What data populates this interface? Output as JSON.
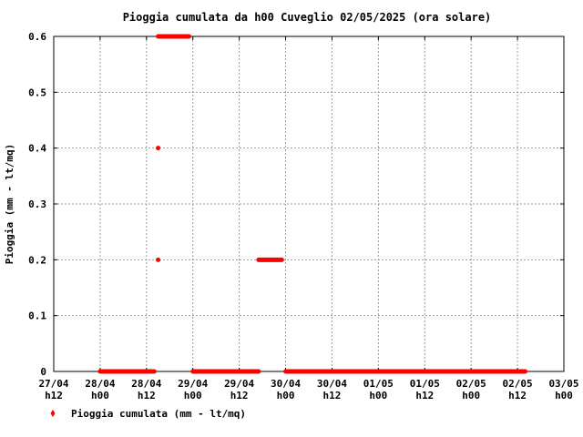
{
  "chart_data": {
    "type": "scatter",
    "title": "Pioggia cumulata da h00 Cuveglio 02/05/2025 (ora solare)",
    "ylabel": "Pioggia (mm - lt/mq)",
    "xlabel": "",
    "ylim": [
      0,
      0.6
    ],
    "y_ticks": [
      "0",
      "0.1",
      "0.2",
      "0.3",
      "0.4",
      "0.5",
      "0.6"
    ],
    "x_ticks": [
      {
        "date": "27/04",
        "hour": "h12"
      },
      {
        "date": "28/04",
        "hour": "h00"
      },
      {
        "date": "28/04",
        "hour": "h12"
      },
      {
        "date": "29/04",
        "hour": "h00"
      },
      {
        "date": "29/04",
        "hour": "h12"
      },
      {
        "date": "30/04",
        "hour": "h00"
      },
      {
        "date": "30/04",
        "hour": "h12"
      },
      {
        "date": "01/05",
        "hour": "h00"
      },
      {
        "date": "01/05",
        "hour": "h12"
      },
      {
        "date": "02/05",
        "hour": "h00"
      },
      {
        "date": "02/05",
        "hour": "h12"
      },
      {
        "date": "03/05",
        "hour": "h00"
      }
    ],
    "grid": true,
    "legend_placement": "bottom-left",
    "series": [
      {
        "name": "Pioggia cumulata (mm - lt/mq)",
        "color": "#ff0000",
        "segments": [
          {
            "from": "28/04 h00",
            "to": "28/04 h14",
            "value": 0
          },
          {
            "from": "28/04 h15",
            "to": "28/04 h15",
            "value": 0.2
          },
          {
            "from": "28/04 h15",
            "to": "28/04 h15",
            "value": 0.4
          },
          {
            "from": "28/04 h15",
            "to": "28/04 h23",
            "value": 0.6
          },
          {
            "from": "29/04 h00",
            "to": "29/04 h17",
            "value": 0
          },
          {
            "from": "29/04 h17",
            "to": "29/04 h23",
            "value": 0.2
          },
          {
            "from": "30/04 h00",
            "to": "02/05 h14",
            "value": 0
          }
        ]
      }
    ]
  }
}
